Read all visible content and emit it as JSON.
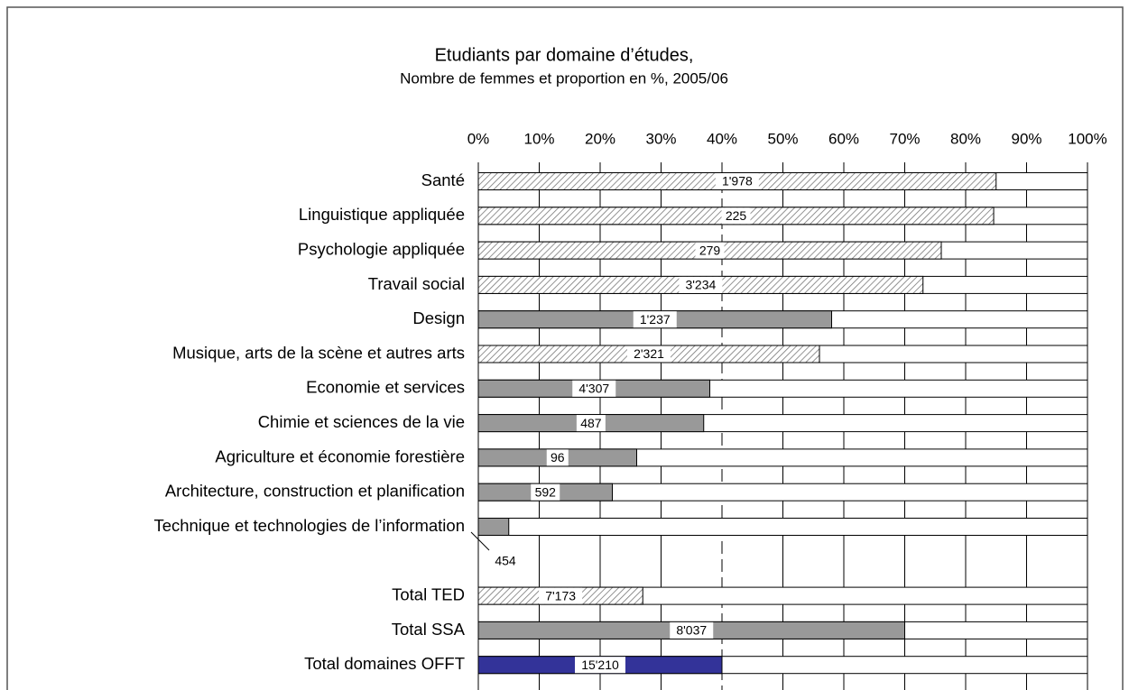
{
  "chart_data": {
    "type": "stacked-percent-hbar",
    "title": "Etudiants par domaine d’études,",
    "subtitle": "Nombre de femmes et proportion en %, 2005/06",
    "categories": [
      "Santé",
      "Linguistique appliquée",
      "Psychologie appliquée",
      "Travail social",
      "Design",
      "Musique, arts de la scène et autres arts",
      "Economie et services",
      "Chimie et sciences de la vie",
      "Agriculture et économie forestière",
      "Architecture, construction et planification",
      "Technique et technologies de l’information",
      null,
      "Total TED",
      "Total SSA",
      "Total domaines OFFT"
    ],
    "values": [
      85,
      84.6,
      76,
      73,
      58,
      56,
      38,
      37,
      26,
      22,
      5,
      null,
      27,
      70,
      40
    ],
    "data_labels": [
      "1'978",
      "225",
      "279",
      "3'234",
      "1'237",
      "2'321",
      "4'307",
      "487",
      "96",
      "592",
      "454",
      null,
      "7'173",
      "8'037",
      "15'210"
    ],
    "colors": [
      "hatch",
      "hatch",
      "hatch",
      "hatch",
      "#999999",
      "hatch",
      "#999999",
      "#999999",
      "#999999",
      "#999999",
      "#999999",
      null,
      "hatch",
      "#999999",
      "#333399"
    ],
    "xlim": [
      0,
      100
    ],
    "xticks": [
      {
        "value": 0,
        "label": "0%"
      },
      {
        "value": 10,
        "label": "10%"
      },
      {
        "value": 20,
        "label": "20%"
      },
      {
        "value": 30,
        "label": "30%"
      },
      {
        "value": 40,
        "label": "40%"
      },
      {
        "value": 50,
        "label": "50%"
      },
      {
        "value": 60,
        "label": "60%"
      },
      {
        "value": 70,
        "label": "70%"
      },
      {
        "value": 80,
        "label": "80%"
      },
      {
        "value": 90,
        "label": "90%"
      },
      {
        "value": 100,
        "label": "100%"
      }
    ],
    "grid": true
  }
}
